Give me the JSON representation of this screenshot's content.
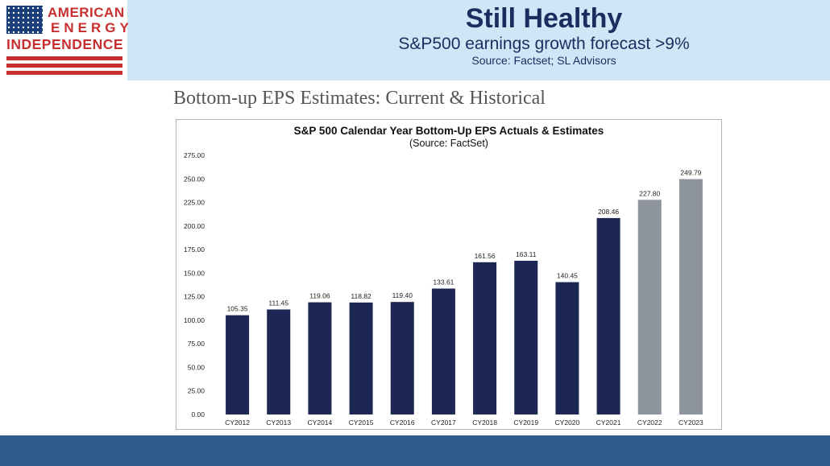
{
  "header": {
    "logo": {
      "line1": "AMERICAN",
      "line2": "ENERGY",
      "line3": "INDEPENDENCE"
    },
    "title": "Still Healthy",
    "subtitle": "S&P500 earnings growth forecast >9%",
    "source": "Source: Factset; SL Advisors"
  },
  "section_heading": "Bottom-up EPS Estimates: Current & Historical",
  "colors": {
    "actual": "#1c2753",
    "estimate": "#8e949d",
    "header_bg": "#cfe6f6",
    "footer_bg": "#2e5a8c",
    "brand_red": "#c8302f"
  },
  "chart_data": {
    "type": "bar",
    "title": "S&P 500 Calendar Year Bottom-Up EPS Actuals & Estimates",
    "subtitle": "(Source: FactSet)",
    "categories": [
      "CY2012",
      "CY2013",
      "CY2014",
      "CY2015",
      "CY2016",
      "CY2017",
      "CY2018",
      "CY2019",
      "CY2020",
      "CY2021",
      "CY2022",
      "CY2023"
    ],
    "values": [
      105.35,
      111.45,
      119.06,
      118.82,
      119.4,
      133.61,
      161.56,
      163.11,
      140.45,
      208.46,
      227.8,
      249.79
    ],
    "value_labels": [
      "105.35",
      "111.45",
      "119.06",
      "118.82",
      "119.40",
      "133.61",
      "161.56",
      "163.11",
      "140.45",
      "208.46",
      "227.80",
      "249.79"
    ],
    "bar_kind": [
      "actual",
      "actual",
      "actual",
      "actual",
      "actual",
      "actual",
      "actual",
      "actual",
      "actual",
      "actual",
      "estimate",
      "estimate"
    ],
    "yticks": [
      "0.00",
      "25.00",
      "50.00",
      "75.00",
      "100.00",
      "125.00",
      "150.00",
      "175.00",
      "200.00",
      "225.00",
      "250.00",
      "275.00"
    ],
    "ylim": [
      0,
      275
    ],
    "xlabel": "",
    "ylabel": "",
    "grid": false
  }
}
